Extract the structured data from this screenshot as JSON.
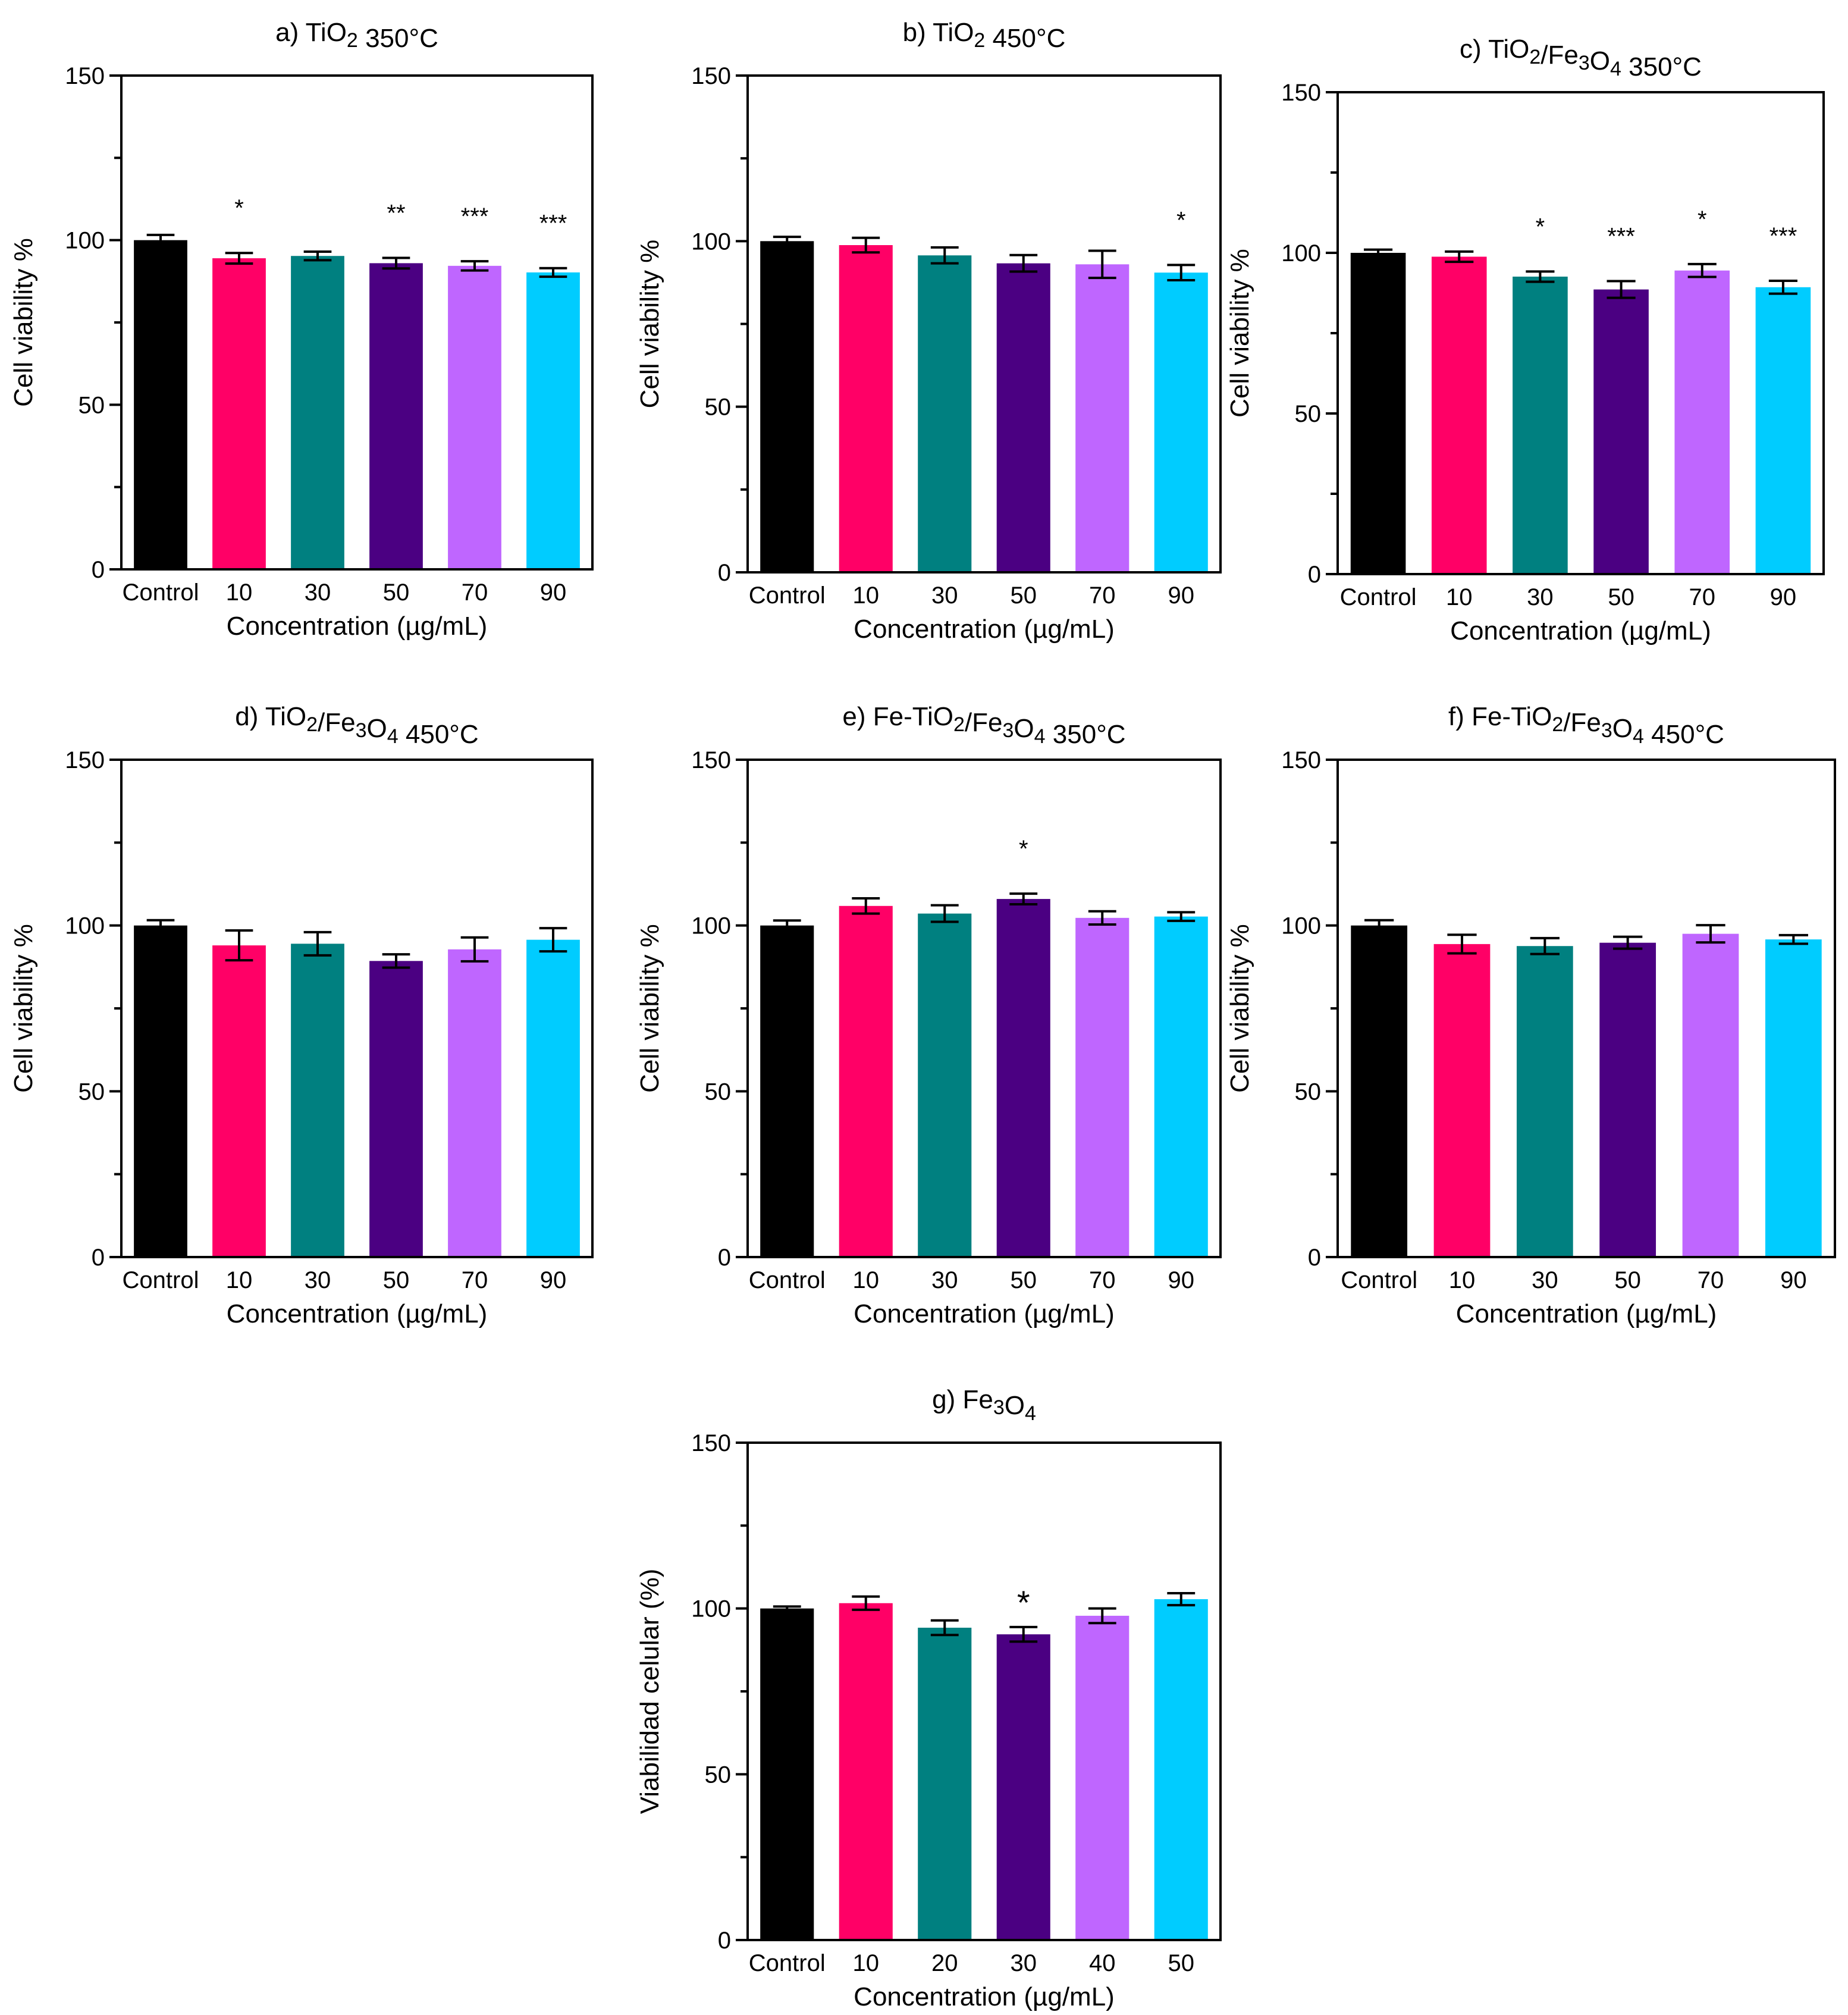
{
  "figure": {
    "label": "Cell viability bar charts",
    "colors": {
      "Control": "#000000",
      "c1": "#ff0066",
      "c2": "#008080",
      "c3": "#4b0082",
      "c4": "#bf66ff",
      "c5": "#00ccff"
    }
  },
  "chart_data": [
    {
      "type": "bar",
      "title": "a) TiO₂ 350°C",
      "xlabel": "Concentration (µg/mL)",
      "ylabel": "Cell viability %",
      "ylim": [
        0,
        150
      ],
      "yticks": [
        0,
        50,
        100,
        150
      ],
      "categories": [
        "Control",
        "10",
        "30",
        "50",
        "70",
        "90"
      ],
      "values": [
        100,
        94.5,
        95.2,
        93.0,
        92.2,
        90.2
      ],
      "errors": [
        1.6,
        1.6,
        1.3,
        1.6,
        1.4,
        1.3
      ],
      "annotations": [
        "",
        "*",
        "",
        "**",
        "***",
        "***"
      ]
    },
    {
      "type": "bar",
      "title": "b) TiO₂ 450°C",
      "xlabel": "Concentration (µg/mL)",
      "ylabel": "Cell viability %",
      "ylim": [
        0,
        150
      ],
      "yticks": [
        0,
        50,
        100,
        150
      ],
      "categories": [
        "Control",
        "10",
        "30",
        "50",
        "70",
        "90"
      ],
      "values": [
        100,
        98.8,
        95.7,
        93.3,
        93.0,
        90.5
      ],
      "errors": [
        1.3,
        2.2,
        2.4,
        2.5,
        4.1,
        2.3
      ],
      "annotations": [
        "",
        "",
        "",
        "",
        "",
        "*"
      ]
    },
    {
      "type": "bar",
      "title": "c) TiO₂/Fe₃O₄ 350°C",
      "xlabel": "Concentration (µg/mL)",
      "ylabel": "Cell viability %",
      "ylim": [
        0,
        150
      ],
      "yticks": [
        0,
        50,
        100,
        150
      ],
      "categories": [
        "Control",
        "10",
        "30",
        "50",
        "70",
        "90"
      ],
      "values": [
        100,
        98.8,
        92.6,
        88.6,
        94.5,
        89.3
      ],
      "errors": [
        1.0,
        1.6,
        1.6,
        2.6,
        2.0,
        2.0
      ],
      "annotations": [
        "",
        "",
        "*",
        "***",
        "*",
        "***"
      ]
    },
    {
      "type": "bar",
      "title": "d) TiO₂/Fe₃O₄ 450°C",
      "xlabel": "Concentration (µg/mL)",
      "ylabel": "Cell viability %",
      "ylim": [
        0,
        150
      ],
      "yticks": [
        0,
        50,
        100,
        150
      ],
      "categories": [
        "Control",
        "10",
        "30",
        "50",
        "70",
        "90"
      ],
      "values": [
        100,
        94.0,
        94.5,
        89.3,
        92.8,
        95.7
      ],
      "errors": [
        1.6,
        4.5,
        3.5,
        2.0,
        3.6,
        3.5
      ],
      "annotations": [
        "",
        "",
        "",
        "",
        "",
        ""
      ]
    },
    {
      "type": "bar",
      "title": "e) Fe-TiO₂/Fe₃O₄ 350°C",
      "xlabel": "Concentration (µg/mL)",
      "ylabel": "Cell viability %",
      "ylim": [
        0,
        150
      ],
      "yticks": [
        0,
        50,
        100,
        150
      ],
      "categories": [
        "Control",
        "10",
        "30",
        "50",
        "70",
        "90"
      ],
      "values": [
        100,
        105.9,
        103.6,
        108.0,
        102.3,
        102.7
      ],
      "errors": [
        1.5,
        2.3,
        2.5,
        1.6,
        2.0,
        1.3
      ],
      "annotations": [
        "",
        "",
        "",
        "*",
        "",
        ""
      ]
    },
    {
      "type": "bar",
      "title": "f) Fe-TiO₂/Fe₃O₄ 450°C",
      "xlabel": "Concentration (µg/mL)",
      "ylabel": "Cell viability %",
      "ylim": [
        0,
        150
      ],
      "yticks": [
        0,
        50,
        100,
        150
      ],
      "categories": [
        "Control",
        "10",
        "30",
        "50",
        "70",
        "90"
      ],
      "values": [
        100,
        94.4,
        93.8,
        94.8,
        97.5,
        95.8
      ],
      "errors": [
        1.6,
        2.8,
        2.4,
        1.8,
        2.6,
        1.3
      ],
      "annotations": [
        "",
        "",
        "",
        "",
        "",
        ""
      ]
    },
    {
      "type": "bar",
      "title": "g) Fe₃O₄",
      "xlabel": "Concentration (µg/mL)",
      "ylabel": "Viabilidad celular (%)",
      "ylim": [
        0,
        150
      ],
      "yticks": [
        0,
        50,
        100,
        150
      ],
      "categories": [
        "Control",
        "10",
        "20",
        "30",
        "40",
        "50"
      ],
      "values": [
        100,
        101.6,
        94.2,
        92.2,
        97.8,
        102.8
      ],
      "errors": [
        0.6,
        2.0,
        2.2,
        2.2,
        2.2,
        1.8
      ],
      "annotations": [
        "",
        "",
        "",
        "*",
        "",
        ""
      ]
    }
  ]
}
